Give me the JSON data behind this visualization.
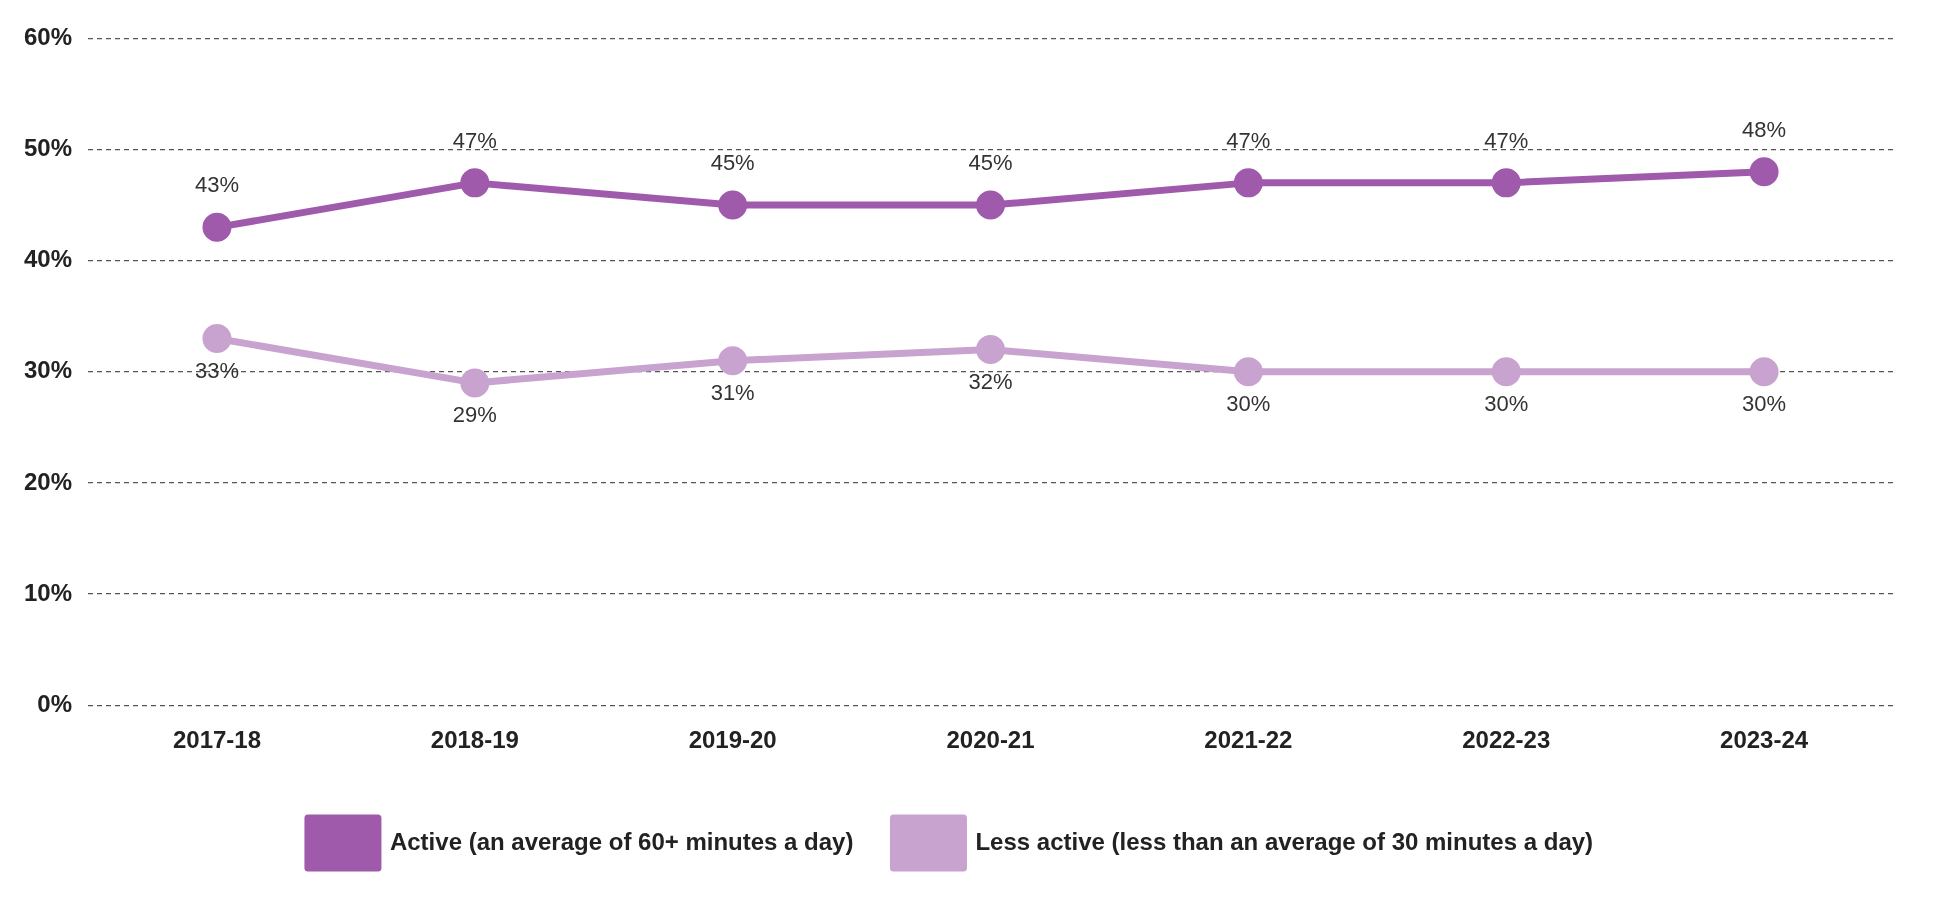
{
  "chart_data": {
    "type": "line",
    "categories": [
      "2017-18",
      "2018-19",
      "2019-20",
      "2020-21",
      "2021-22",
      "2022-23",
      "2023-24"
    ],
    "series": [
      {
        "name": "Active (an average of 60+ minutes a day)",
        "color": "#a05aab",
        "values": [
          43,
          47,
          45,
          45,
          47,
          47,
          48
        ],
        "value_labels": [
          "43%",
          "47%",
          "45%",
          "45%",
          "47%",
          "47%",
          "48%"
        ]
      },
      {
        "name": "Less active (less than an average of 30 minutes a day)",
        "color": "#c9a3cf",
        "values": [
          33,
          29,
          31,
          32,
          30,
          30,
          30
        ],
        "value_labels": [
          "33%",
          "29%",
          "31%",
          "32%",
          "30%",
          "30%",
          "30%"
        ]
      }
    ],
    "ylim": [
      0,
      60
    ],
    "yticks": [
      {
        "value": 0,
        "label": "0%"
      },
      {
        "value": 10,
        "label": "10%"
      },
      {
        "value": 20,
        "label": "20%"
      },
      {
        "value": 30,
        "label": "30%"
      },
      {
        "value": 40,
        "label": "40%"
      },
      {
        "value": 50,
        "label": "50%"
      },
      {
        "value": 60,
        "label": "60%"
      }
    ],
    "grid": "y",
    "legend": "bottom",
    "marker": "circle",
    "line_style": "solid"
  }
}
